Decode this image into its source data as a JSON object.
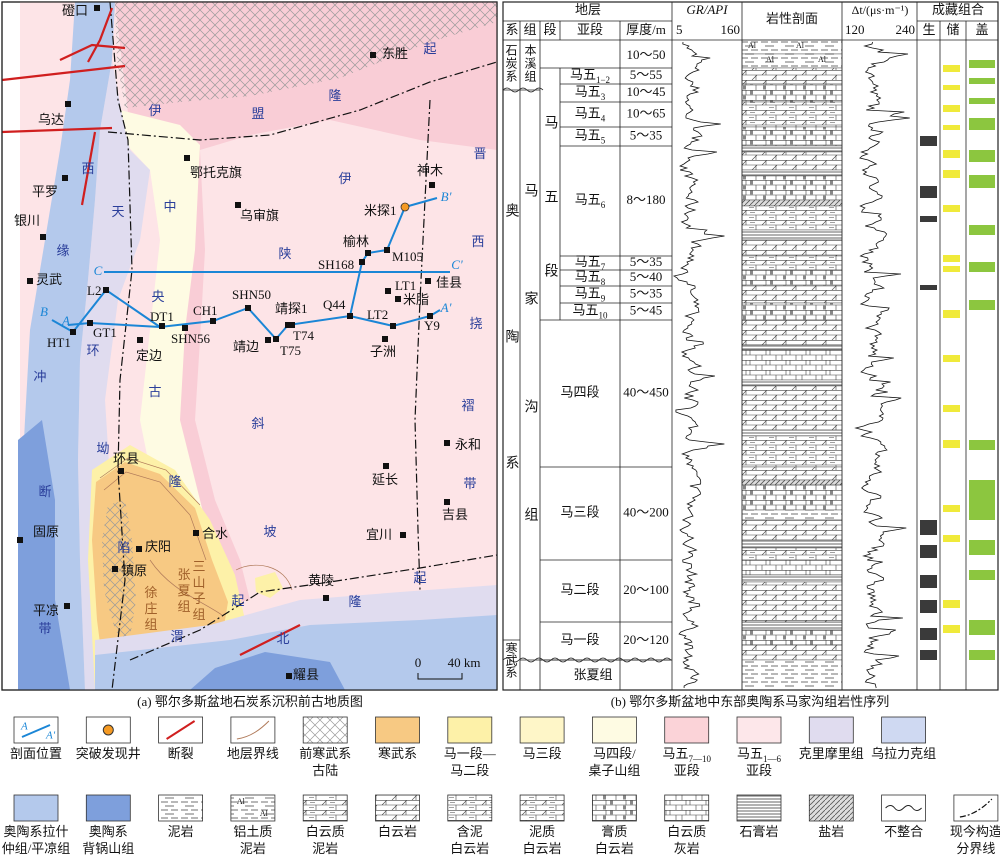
{
  "map": {
    "caption": "(a) 鄂尔多斯盆地石炭系沉积前古地质图",
    "places": [
      "磴口",
      "东胜",
      "乌达",
      "鄂托克旗",
      "平罗",
      "银川",
      "乌审旗",
      "神木",
      "米探1",
      "榆林",
      "M105",
      "SH168",
      "灵武",
      "佳县",
      "LT1",
      "米脂",
      "Q44",
      "L2",
      "SHN50",
      "靖探1",
      "LT2",
      "Y9",
      "CH1",
      "DT1",
      "GT1",
      "HT1",
      "SHN56",
      "T74",
      "定边",
      "靖边",
      "T75",
      "子洲",
      "永和",
      "环县",
      "延长",
      "吉县",
      "合水",
      "宜川",
      "庆阳",
      "镇原",
      "黄陵",
      "固原",
      "平凉",
      "耀县"
    ],
    "profile_ends": [
      "C",
      "C'",
      "B",
      "B'",
      "A",
      "A'"
    ],
    "regions": [
      [
        "伊",
        "盟",
        "隆",
        "起"
      ],
      [
        "西",
        "缘",
        "冲",
        "断",
        "带"
      ],
      [
        "天",
        "环",
        "坳",
        "陷"
      ],
      [
        "中",
        "央",
        "古",
        "隆",
        "起"
      ],
      [
        "伊",
        "陕",
        "斜",
        "坡"
      ],
      [
        "晋",
        "西",
        "挠",
        "褶",
        "带"
      ],
      [
        "渭",
        "北",
        "隆",
        "起"
      ]
    ],
    "formations": [
      [
        "三",
        "山",
        "子",
        "组"
      ],
      [
        "张",
        "夏",
        "组"
      ],
      [
        "徐",
        "庄",
        "组"
      ]
    ],
    "scale": [
      "0",
      "40 km"
    ]
  },
  "column": {
    "caption": "(b) 鄂尔多斯盆地中东部奥陶系马家沟组岩性序列",
    "header": {
      "strata": "地层",
      "system": "系",
      "formation": "组",
      "member": "段",
      "submember": "亚段",
      "thickness": "厚度/m",
      "gr": "GR/API",
      "gr_range": [
        5,
        160
      ],
      "lithology": "岩性剖面",
      "dt": "Δt/(μs·m⁻¹)",
      "dt_range": [
        120,
        240
      ],
      "play": "成藏组合",
      "source": "生",
      "reservoir": "储",
      "seal": "盖"
    },
    "systems": [
      "石炭系",
      "奥陶系",
      "寒武系"
    ],
    "formations": [
      "本溪组",
      "马家沟组",
      "张夏组"
    ],
    "member": "马五段",
    "benxi_thickness": "10～50",
    "lithology_symbol": "Al",
    "units": [
      {
        "name": "马五",
        "sub": "1−2",
        "thickness": "5～55"
      },
      {
        "name": "马五",
        "sub": "3",
        "thickness": "10～45"
      },
      {
        "name": "马五",
        "sub": "4",
        "thickness": "10～65"
      },
      {
        "name": "马五",
        "sub": "5",
        "thickness": "5～35"
      },
      {
        "name": "马五",
        "sub": "6",
        "thickness": "8～180"
      },
      {
        "name": "马五",
        "sub": "7",
        "thickness": "5～35"
      },
      {
        "name": "马五",
        "sub": "8",
        "thickness": "5～40"
      },
      {
        "name": "马五",
        "sub": "9",
        "thickness": "5～35"
      },
      {
        "name": "马五",
        "sub": "10",
        "thickness": "5～45"
      },
      {
        "name": "马四段",
        "thickness": "40～450"
      },
      {
        "name": "马三段",
        "thickness": "40～200"
      },
      {
        "name": "马二段",
        "thickness": "20～100"
      },
      {
        "name": "马一段",
        "thickness": "20～120"
      }
    ]
  },
  "legend": {
    "row1": [
      [
        "剖面位置"
      ],
      [
        "突破发现井"
      ],
      [
        "断裂"
      ],
      [
        "地层界线"
      ],
      [
        "前寒武系",
        "古陆"
      ],
      [
        "寒武系"
      ],
      [
        "马一段—",
        "马二段"
      ],
      [
        "马三段"
      ],
      [
        "马四段/",
        "桌子山组"
      ],
      [
        {
          "t": "马五",
          "sub": "7—10"
        },
        "亚段"
      ],
      [
        {
          "t": "马五",
          "sub": "1—6"
        },
        "亚段"
      ],
      [
        "克里摩里组"
      ],
      [
        "乌拉力克组"
      ]
    ],
    "row2": [
      [
        "奥陶系拉什",
        "仲组/平凉组"
      ],
      [
        "奥陶系",
        "背锅山组"
      ],
      [
        "泥岩"
      ],
      [
        "铝土质",
        "泥岩"
      ],
      [
        "白云质",
        "泥岩"
      ],
      [
        "白云岩"
      ],
      [
        "含泥",
        "白云岩"
      ],
      [
        "泥质",
        "白云岩"
      ],
      [
        "膏质",
        "白云岩"
      ],
      [
        "白云质",
        "灰岩"
      ],
      [
        "石膏岩"
      ],
      [
        "盐岩"
      ],
      [
        "不整合"
      ],
      [
        "现今构造",
        "分界线"
      ]
    ]
  }
}
